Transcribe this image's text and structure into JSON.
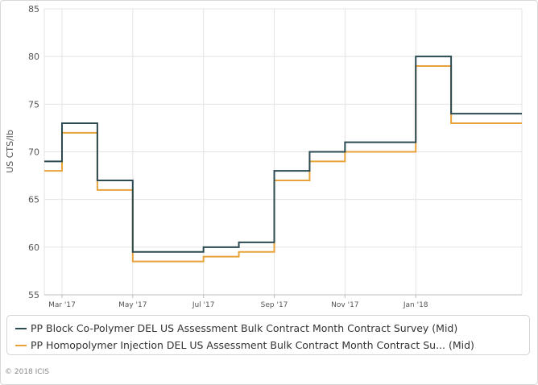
{
  "chart_data": {
    "type": "line",
    "step": true,
    "title": "",
    "xlabel": "",
    "ylabel": "US CTS/lb",
    "ylim": [
      55,
      85
    ],
    "yticks": [
      55,
      60,
      65,
      70,
      75,
      80,
      85
    ],
    "xlim": [
      2017.125,
      2018.25
    ],
    "xticks": [
      {
        "label": "Mar '17",
        "x": 2017.1667
      },
      {
        "label": "May '17",
        "x": 2017.3333
      },
      {
        "label": "Jul '17",
        "x": 2017.5
      },
      {
        "label": "Sep '17",
        "x": 2017.6667
      },
      {
        "label": "Nov '17",
        "x": 2017.8333
      },
      {
        "label": "Jan '18",
        "x": 2018.0
      }
    ],
    "grid": true,
    "legend_position": "bottom",
    "series": [
      {
        "name": "PP Block Co-Polymer DEL US Assessment Bulk Contract Month Contract Survey (Mid)",
        "color": "#2b4a52",
        "x": [
          2017.125,
          2017.1667,
          2017.25,
          2017.3333,
          2017.5,
          2017.5833,
          2017.6667,
          2017.75,
          2017.8333,
          2018.0,
          2018.0833,
          2018.25
        ],
        "values": [
          69,
          73,
          67,
          59.5,
          60,
          60.5,
          68,
          70,
          71,
          80,
          74,
          74
        ]
      },
      {
        "name": "PP Homopolymer Injection DEL US Assessment Bulk Contract Month Contract Su... (Mid)",
        "color": "#e8a23a",
        "x": [
          2017.125,
          2017.1667,
          2017.25,
          2017.3333,
          2017.5,
          2017.5833,
          2017.6667,
          2017.75,
          2017.8333,
          2018.0,
          2018.0833,
          2018.25
        ],
        "values": [
          68,
          72,
          66,
          58.5,
          59,
          59.5,
          67,
          69,
          70,
          79,
          73,
          73
        ]
      }
    ]
  },
  "footer": {
    "copyright": "© 2018 ICIS"
  }
}
